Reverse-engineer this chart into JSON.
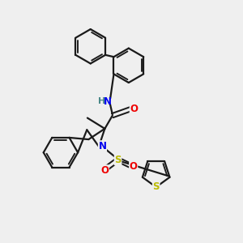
{
  "background_color": "#efefef",
  "line_color": "#1a1a1a",
  "line_width": 1.6,
  "N_color": "#0000ee",
  "O_color": "#ee0000",
  "S_color": "#bbbb00",
  "H_color": "#4a8888",
  "figsize": [
    3.0,
    3.0
  ],
  "dpi": 100,
  "xlim": [
    0,
    10
  ],
  "ylim": [
    0,
    10
  ]
}
